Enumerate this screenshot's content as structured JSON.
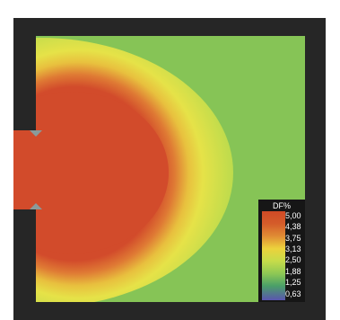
{
  "legend": {
    "title": "DF%",
    "levels": [
      {
        "label": "5,00",
        "color": "#d04a26"
      },
      {
        "label": "4,38",
        "color": "#d45c2a"
      },
      {
        "label": "3,75",
        "color": "#e08c34"
      },
      {
        "label": "3,13",
        "color": "#ecd23c"
      },
      {
        "label": "2,50",
        "color": "#c6dc4a"
      },
      {
        "label": "1,88",
        "color": "#8ec854"
      },
      {
        "label": "1,25",
        "color": "#4a9f68"
      },
      {
        "label": "0,63",
        "color": "#5a55b0"
      }
    ]
  },
  "colors": {
    "frame": "#262626",
    "background_field": "#86c456",
    "hot_core": "#d24b2b",
    "warm_band": "#e4a13a",
    "yellow_band": "#e6e248"
  }
}
